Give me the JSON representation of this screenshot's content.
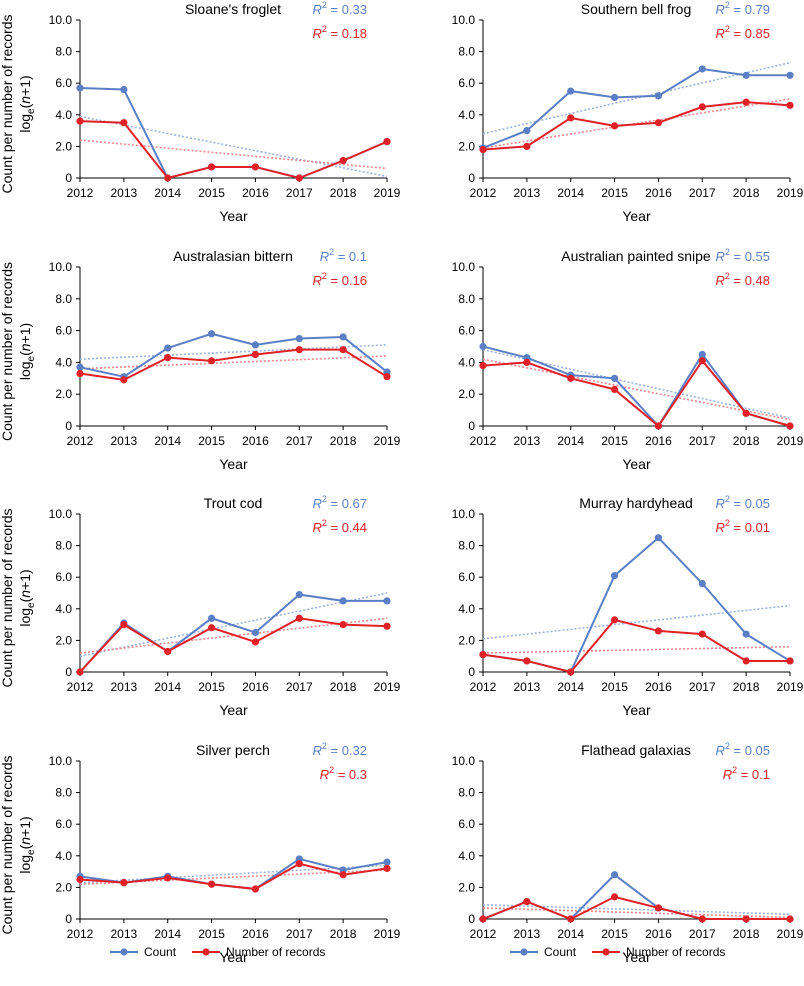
{
  "ylabel_line1": "Count per number of records",
  "ylabel_line2_base": "log",
  "ylabel_line2_sub": "e",
  "ylabel_line2_open": "(",
  "ylabel_line2_var": "n",
  "ylabel_line2_rest": "+1)",
  "xlabel": "Year",
  "r2_symbol": "R",
  "r2_sup": "2",
  "r2_eq": " = ",
  "colors": {
    "count": "#5b7fc4",
    "records": "#e02228",
    "count_trend": "#9db3dd",
    "records_trend": "#ee8a8d",
    "axis": "#000000"
  },
  "legend": {
    "count_label": "Count",
    "records_label": "Number of records"
  },
  "chart_data": [
    {
      "type": "line",
      "title": "Sloane's froglet",
      "x": [
        "2012",
        "2013",
        "2014",
        "2015",
        "2016",
        "2017",
        "2018",
        "2019"
      ],
      "yticks": [
        "0",
        "2.0",
        "4.0",
        "6.0",
        "8.0",
        "10.0"
      ],
      "ylim": [
        0,
        10
      ],
      "series": [
        {
          "name": "Count",
          "values": [
            5.7,
            5.6,
            0,
            0.7,
            0.7,
            0,
            1.1,
            2.3
          ],
          "r2": "0.33",
          "trend": [
            3.9,
            0.1
          ]
        },
        {
          "name": "Number of records",
          "values": [
            3.6,
            3.5,
            0,
            0.7,
            0.7,
            0,
            1.1,
            2.3
          ],
          "r2": "0.18",
          "trend": [
            2.4,
            0.6
          ]
        }
      ]
    },
    {
      "type": "line",
      "title": "Southern bell frog",
      "x": [
        "2012",
        "2013",
        "2014",
        "2015",
        "2016",
        "2017",
        "2018",
        "2019"
      ],
      "yticks": [
        "0",
        "2.0",
        "4.0",
        "6.0",
        "8.0",
        "10.0"
      ],
      "ylim": [
        0,
        10
      ],
      "series": [
        {
          "name": "Count",
          "values": [
            1.9,
            3.0,
            5.5,
            5.1,
            5.2,
            6.9,
            6.5,
            6.5
          ],
          "r2": "0.79",
          "trend": [
            2.8,
            7.3
          ]
        },
        {
          "name": "Number of records",
          "values": [
            1.8,
            2.0,
            3.8,
            3.3,
            3.5,
            4.5,
            4.8,
            4.6
          ],
          "r2": "0.85",
          "trend": [
            1.9,
            5.0
          ]
        }
      ]
    },
    {
      "type": "line",
      "title": "Australasian bittern",
      "x": [
        "2012",
        "2013",
        "2014",
        "2015",
        "2016",
        "2017",
        "2018",
        "2019"
      ],
      "yticks": [
        "0",
        "2.0",
        "4.0",
        "6.0",
        "8.0",
        "10.0"
      ],
      "ylim": [
        0,
        10
      ],
      "series": [
        {
          "name": "Count",
          "values": [
            3.7,
            3.1,
            4.9,
            5.8,
            5.1,
            5.5,
            5.6,
            3.4
          ],
          "r2": "0.1",
          "trend": [
            4.2,
            5.1
          ]
        },
        {
          "name": "Number of records",
          "values": [
            3.3,
            2.9,
            4.3,
            4.1,
            4.5,
            4.8,
            4.8,
            3.1
          ],
          "r2": "0.16",
          "trend": [
            3.6,
            4.4
          ]
        }
      ]
    },
    {
      "type": "line",
      "title": "Australian painted snipe",
      "x": [
        "2012",
        "2013",
        "2014",
        "2015",
        "2016",
        "2017",
        "2018",
        "2019"
      ],
      "yticks": [
        "0",
        "2.0",
        "4.0",
        "6.0",
        "8.0",
        "10.0"
      ],
      "ylim": [
        0,
        10
      ],
      "series": [
        {
          "name": "Count",
          "values": [
            5.0,
            4.3,
            3.2,
            3.0,
            0,
            4.5,
            0.8,
            0
          ],
          "r2": "0.55",
          "trend": [
            4.8,
            0.5
          ]
        },
        {
          "name": "Number of records",
          "values": [
            3.8,
            4.0,
            3.0,
            2.3,
            0,
            4.1,
            0.8,
            0
          ],
          "r2": "0.48",
          "trend": [
            4.2,
            0.4
          ]
        }
      ]
    },
    {
      "type": "line",
      "title": "Trout cod",
      "x": [
        "2012",
        "2013",
        "2014",
        "2015",
        "2016",
        "2017",
        "2018",
        "2019"
      ],
      "yticks": [
        "0",
        "2.0",
        "4.0",
        "6.0",
        "8.0",
        "10.0"
      ],
      "ylim": [
        0,
        10
      ],
      "series": [
        {
          "name": "Count",
          "values": [
            0,
            3.1,
            1.3,
            3.4,
            2.5,
            4.9,
            4.5,
            4.5
          ],
          "r2": "0.67",
          "trend": [
            1.0,
            5.0
          ]
        },
        {
          "name": "Number of records",
          "values": [
            0,
            3.0,
            1.3,
            2.8,
            1.9,
            3.4,
            3.0,
            2.9
          ],
          "r2": "0.44",
          "trend": [
            1.2,
            3.4
          ]
        }
      ]
    },
    {
      "type": "line",
      "title": "Murray hardyhead",
      "x": [
        "2012",
        "2013",
        "2014",
        "2015",
        "2016",
        "2017",
        "2018",
        "2019"
      ],
      "yticks": [
        "0",
        "2.0",
        "4.0",
        "6.0",
        "8.0",
        "10.0"
      ],
      "ylim": [
        0,
        10
      ],
      "series": [
        {
          "name": "Count",
          "values": [
            1.1,
            0.7,
            0,
            6.1,
            8.5,
            5.6,
            2.4,
            0.7
          ],
          "r2": "0.05",
          "trend": [
            2.1,
            4.2
          ]
        },
        {
          "name": "Number of records",
          "values": [
            1.1,
            0.7,
            0,
            3.3,
            2.6,
            2.4,
            0.7,
            0.7
          ],
          "r2": "0.01",
          "trend": [
            1.2,
            1.6
          ]
        }
      ]
    },
    {
      "type": "line",
      "title": "Silver perch",
      "x": [
        "2012",
        "2013",
        "2014",
        "2015",
        "2016",
        "2017",
        "2018",
        "2019"
      ],
      "yticks": [
        "0",
        "2.0",
        "4.0",
        "6.0",
        "8.0",
        "10.0"
      ],
      "ylim": [
        0,
        10
      ],
      "series": [
        {
          "name": "Count",
          "values": [
            2.7,
            2.3,
            2.7,
            2.2,
            1.9,
            3.8,
            3.1,
            3.6
          ],
          "r2": "0.32",
          "trend": [
            2.3,
            3.4
          ]
        },
        {
          "name": "Number of records",
          "values": [
            2.5,
            2.3,
            2.6,
            2.2,
            1.9,
            3.5,
            2.8,
            3.2
          ],
          "r2": "0.3",
          "trend": [
            2.2,
            3.1
          ]
        }
      ]
    },
    {
      "type": "line",
      "title": "Flathead galaxias",
      "x": [
        "2012",
        "2013",
        "2014",
        "2015",
        "2016",
        "2017",
        "2018",
        "2019"
      ],
      "yticks": [
        "0",
        "2.0",
        "4.0",
        "6.0",
        "8.0",
        "10.0"
      ],
      "ylim": [
        0,
        10
      ],
      "series": [
        {
          "name": "Count",
          "values": [
            0,
            1.1,
            0,
            2.8,
            0.7,
            0,
            0,
            0
          ],
          "r2": "0.05",
          "trend": [
            0.9,
            0.3
          ]
        },
        {
          "name": "Number of records",
          "values": [
            0,
            1.1,
            0,
            1.4,
            0.7,
            0,
            0,
            0
          ],
          "r2": "0.1",
          "trend": [
            0.7,
            0.1
          ]
        }
      ]
    }
  ]
}
